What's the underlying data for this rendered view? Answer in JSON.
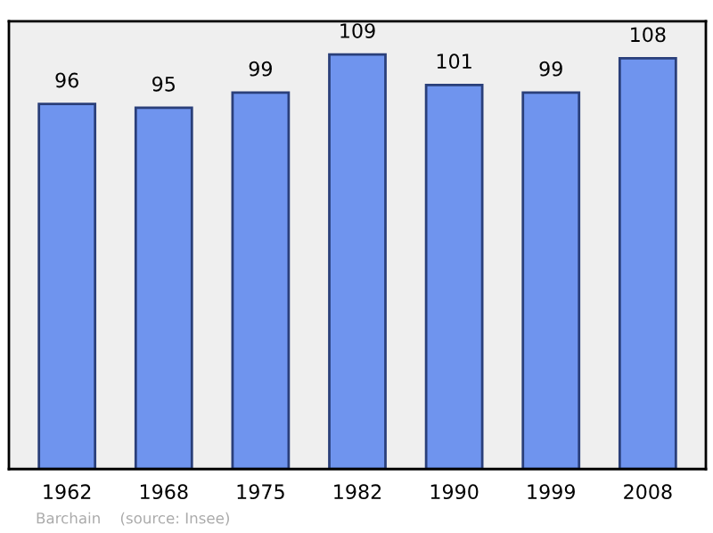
{
  "chart_data": {
    "type": "bar",
    "categories": [
      "1962",
      "1968",
      "1975",
      "1982",
      "1990",
      "1999",
      "2008"
    ],
    "values": [
      96,
      95,
      99,
      109,
      101,
      99,
      108
    ],
    "color": "#6f94ee",
    "data_labels": true,
    "grid": false,
    "annotations": [
      "Barchain    (source: Insee)"
    ]
  }
}
